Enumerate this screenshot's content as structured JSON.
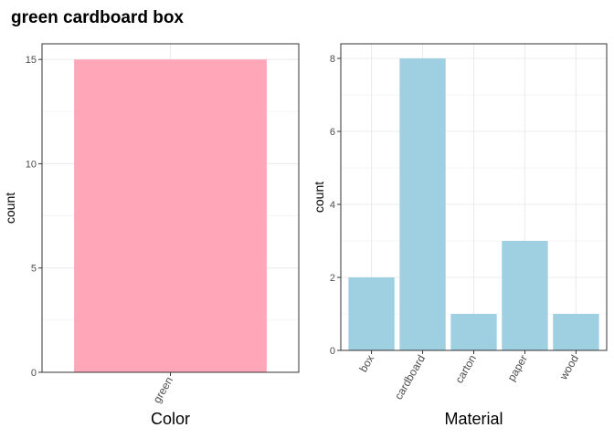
{
  "page_title": "green cardboard box",
  "chart_data": [
    {
      "type": "bar",
      "categories": [
        "green"
      ],
      "values": [
        15
      ],
      "xlabel": "Color",
      "ylabel": "count",
      "yticks": [
        0,
        5,
        10,
        15
      ],
      "ylim": [
        0,
        15.75
      ],
      "bar_color": "#ffa6b8",
      "grid": true
    },
    {
      "type": "bar",
      "categories": [
        "box",
        "cardboard",
        "carton",
        "paper",
        "wood"
      ],
      "values": [
        2,
        8,
        1,
        3,
        1
      ],
      "xlabel": "Material",
      "ylabel": "count",
      "yticks": [
        0,
        2,
        4,
        6,
        8
      ],
      "ylim": [
        0,
        8.4
      ],
      "bar_color": "#9fd0e2",
      "grid": true
    }
  ]
}
